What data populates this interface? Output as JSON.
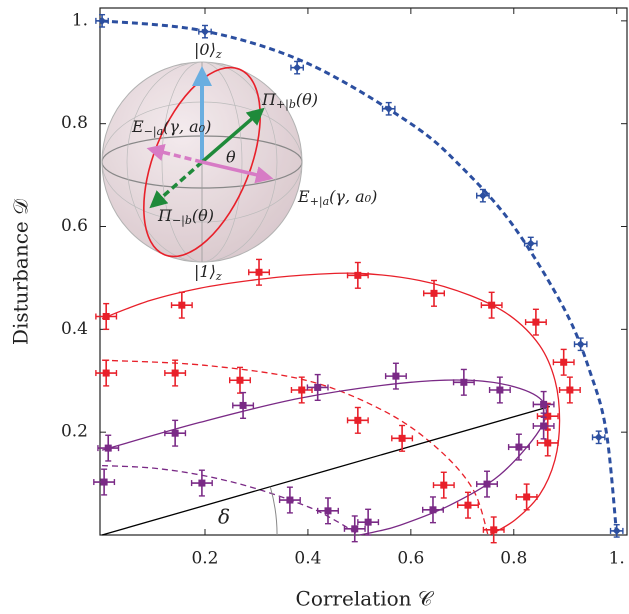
{
  "chart_data": {
    "type": "scatter",
    "xlabel": "Correlation 𝒞",
    "ylabel": "Disturbance 𝒟",
    "xlim": [
      -0.004,
      1.02
    ],
    "ylim": [
      0,
      1.025
    ],
    "xticks": [
      0.2,
      0.4,
      0.6,
      0.8,
      {
        "value": 1,
        "label": "1."
      }
    ],
    "yticks": [
      0.2,
      0.4,
      0.6,
      0.8,
      {
        "value": 1,
        "label": "1."
      }
    ],
    "series": [
      {
        "color": "#2c4fa0",
        "marker": "diamond",
        "xerr": 0.012,
        "yerr": 0.012,
        "x": [
          0.0,
          0.2,
          0.379,
          0.557,
          0.74,
          0.833,
          0.93,
          0.965,
          1.0
        ],
        "y": [
          1.0,
          0.979,
          0.909,
          0.829,
          0.66,
          0.567,
          0.371,
          0.19,
          0.008
        ]
      },
      {
        "color": "#e8202a",
        "marker": "square",
        "xerr": 0.02,
        "yerr": 0.025,
        "x": [
          0.008,
          0.155,
          0.305,
          0.497,
          0.645,
          0.757,
          0.843,
          0.897,
          0.909,
          0.866,
          0.866,
          0.825,
          0.761,
          0.008,
          0.142,
          0.268,
          0.388,
          0.497,
          0.583,
          0.664,
          0.711
        ],
        "y": [
          0.425,
          0.447,
          0.511,
          0.505,
          0.47,
          0.447,
          0.414,
          0.336,
          0.282,
          0.231,
          0.179,
          0.074,
          0.01,
          0.315,
          0.315,
          0.301,
          0.282,
          0.223,
          0.188,
          0.097,
          0.058
        ]
      },
      {
        "color": "#7a2a86",
        "marker": "square",
        "xerr": 0.02,
        "yerr": 0.025,
        "x": [
          0.012,
          0.142,
          0.274,
          0.419,
          0.571,
          0.703,
          0.773,
          0.858,
          0.858,
          0.81,
          0.748,
          0.643,
          0.517,
          0.491,
          0.439,
          0.365,
          0.194,
          0.004
        ],
        "y": [
          0.169,
          0.198,
          0.252,
          0.287,
          0.309,
          0.297,
          0.282,
          0.254,
          0.212,
          0.171,
          0.099,
          0.049,
          0.025,
          0.012,
          0.047,
          0.068,
          0.101,
          0.103
        ]
      }
    ],
    "lines": [
      {
        "color": "#2c4fa0",
        "style": "dashed",
        "width": 3,
        "x": [
          0,
          0.2,
          0.4,
          0.6,
          0.7,
          0.8,
          0.9,
          0.95,
          0.98,
          1.0
        ],
        "y": [
          1.0,
          0.98,
          0.917,
          0.8,
          0.714,
          0.6,
          0.436,
          0.312,
          0.199,
          0
        ]
      },
      {
        "color": "#e8202a",
        "style": "solid",
        "width": 1.3,
        "x": [
          0,
          0.093,
          0.19,
          0.287,
          0.384,
          0.497,
          0.617,
          0.715,
          0.792,
          0.85,
          0.88,
          0.889,
          0.88,
          0.85,
          0.802,
          0.753
        ],
        "y": [
          0.421,
          0.456,
          0.48,
          0.495,
          0.505,
          0.509,
          0.495,
          0.466,
          0.427,
          0.369,
          0.301,
          0.223,
          0.146,
          0.078,
          0.029,
          0
        ]
      },
      {
        "color": "#e8202a",
        "style": "dashed",
        "width": 1.3,
        "x": [
          0,
          0.2,
          0.4,
          0.55,
          0.65,
          0.72,
          0.75
        ],
        "y": [
          0.34,
          0.33,
          0.3,
          0.24,
          0.17,
          0.09,
          0
        ]
      },
      {
        "color": "#7a2a86",
        "style": "solid",
        "width": 1.3,
        "x": [
          0,
          0.19,
          0.384,
          0.579,
          0.715,
          0.812,
          0.86,
          0.85,
          0.773,
          0.676,
          0.579,
          0.53,
          0.5
        ],
        "y": [
          0.165,
          0.219,
          0.266,
          0.295,
          0.301,
          0.285,
          0.254,
          0.204,
          0.117,
          0.058,
          0.019,
          0.006,
          0
        ]
      },
      {
        "color": "#7a2a86",
        "style": "dashed",
        "width": 1.3,
        "x": [
          0,
          0.1,
          0.2,
          0.3,
          0.4,
          0.45,
          0.5
        ],
        "y": [
          0.135,
          0.13,
          0.115,
          0.09,
          0.055,
          0.03,
          0
        ]
      },
      {
        "color": "#000000",
        "style": "solid",
        "width": 1.3,
        "x": [
          0,
          0.87
        ],
        "y": [
          0,
          0.25
        ]
      }
    ],
    "annotations": [
      {
        "text": "|0⟩",
        "sub": "z"
      },
      {
        "text": "Π",
        "sub": "+|b",
        "after": "(θ)"
      },
      {
        "text": "E",
        "sub": "−|a",
        "after": "(γ, a₀)"
      },
      {
        "text": "θ"
      },
      {
        "text": "E",
        "sub": "+|a",
        "after": "(γ, a₀)"
      },
      {
        "text": "Π",
        "sub": "−|b",
        "after": "(θ)"
      },
      {
        "text": "|1⟩",
        "sub": "z"
      },
      {
        "text": "δ"
      }
    ]
  }
}
